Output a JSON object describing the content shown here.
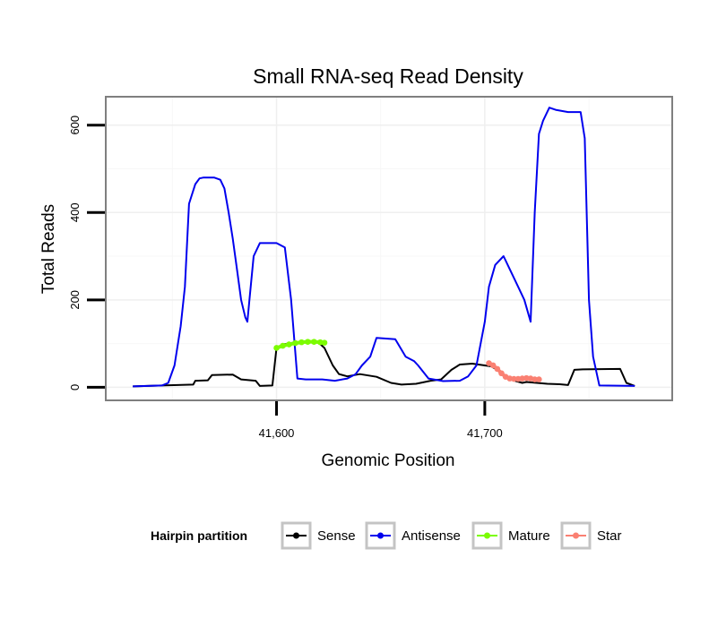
{
  "chart_data": {
    "type": "line",
    "title": "Small RNA-seq Read Density",
    "xlabel": "Genomic Position",
    "ylabel": "Total Reads",
    "xlim": [
      41518,
      41790
    ],
    "ylim": [
      -30,
      665
    ],
    "x_ticks": [
      41600,
      41700
    ],
    "x_tick_labels": [
      "41,600",
      "41,700"
    ],
    "y_ticks": [
      0,
      200,
      400,
      600
    ],
    "y_tick_labels": [
      "0",
      "200",
      "400",
      "600"
    ],
    "legend": {
      "title": "Hairpin partition",
      "position": "bottom",
      "entries": [
        "Sense",
        "Antisense",
        "Mature",
        "Star"
      ]
    },
    "series": [
      {
        "name": "Sense",
        "color": "#000000",
        "points": [
          [
            41531,
            2
          ],
          [
            41545,
            4
          ],
          [
            41560,
            6
          ],
          [
            41561,
            15
          ],
          [
            41567,
            16
          ],
          [
            41569,
            28
          ],
          [
            41579,
            29
          ],
          [
            41583,
            18
          ],
          [
            41590,
            15
          ],
          [
            41592,
            3
          ],
          [
            41598,
            4
          ],
          [
            41600,
            90
          ],
          [
            41603,
            98
          ],
          [
            41608,
            102
          ],
          [
            41615,
            104
          ],
          [
            41620,
            103
          ],
          [
            41623,
            90
          ],
          [
            41627,
            50
          ],
          [
            41630,
            30
          ],
          [
            41634,
            25
          ],
          [
            41640,
            30
          ],
          [
            41648,
            24
          ],
          [
            41655,
            10
          ],
          [
            41660,
            6
          ],
          [
            41667,
            8
          ],
          [
            41674,
            15
          ],
          [
            41679,
            18
          ],
          [
            41684,
            40
          ],
          [
            41688,
            52
          ],
          [
            41694,
            54
          ],
          [
            41700,
            50
          ],
          [
            41703,
            48
          ],
          [
            41706,
            40
          ],
          [
            41710,
            22
          ],
          [
            41715,
            14
          ],
          [
            41718,
            10
          ],
          [
            41720,
            12
          ],
          [
            41725,
            10
          ],
          [
            41730,
            8
          ],
          [
            41736,
            7
          ],
          [
            41740,
            5
          ],
          [
            41743,
            40
          ],
          [
            41747,
            41
          ],
          [
            41765,
            42
          ],
          [
            41768,
            10
          ],
          [
            41772,
            3
          ]
        ]
      },
      {
        "name": "Antisense",
        "color": "#0000ee",
        "points": [
          [
            41531,
            2
          ],
          [
            41545,
            4
          ],
          [
            41548,
            10
          ],
          [
            41551,
            50
          ],
          [
            41554,
            140
          ],
          [
            41556,
            230
          ],
          [
            41558,
            420
          ],
          [
            41561,
            465
          ],
          [
            41563,
            478
          ],
          [
            41565,
            480
          ],
          [
            41570,
            480
          ],
          [
            41573,
            475
          ],
          [
            41575,
            455
          ],
          [
            41577,
            400
          ],
          [
            41579,
            340
          ],
          [
            41581,
            270
          ],
          [
            41583,
            200
          ],
          [
            41585,
            160
          ],
          [
            41586,
            150
          ],
          [
            41587,
            200
          ],
          [
            41589,
            300
          ],
          [
            41592,
            330
          ],
          [
            41600,
            330
          ],
          [
            41604,
            320
          ],
          [
            41607,
            200
          ],
          [
            41610,
            20
          ],
          [
            41614,
            18
          ],
          [
            41622,
            18
          ],
          [
            41628,
            15
          ],
          [
            41634,
            20
          ],
          [
            41638,
            30
          ],
          [
            41641,
            50
          ],
          [
            41645,
            70
          ],
          [
            41648,
            113
          ],
          [
            41657,
            110
          ],
          [
            41662,
            70
          ],
          [
            41666,
            60
          ],
          [
            41668,
            50
          ],
          [
            41673,
            20
          ],
          [
            41680,
            14
          ],
          [
            41688,
            15
          ],
          [
            41692,
            25
          ],
          [
            41696,
            50
          ],
          [
            41700,
            150
          ],
          [
            41702,
            230
          ],
          [
            41705,
            280
          ],
          [
            41709,
            300
          ],
          [
            41712,
            270
          ],
          [
            41716,
            230
          ],
          [
            41719,
            200
          ],
          [
            41722,
            150
          ],
          [
            41724,
            400
          ],
          [
            41726,
            580
          ],
          [
            41728,
            610
          ],
          [
            41731,
            640
          ],
          [
            41734,
            635
          ],
          [
            41740,
            630
          ],
          [
            41746,
            630
          ],
          [
            41748,
            570
          ],
          [
            41750,
            200
          ],
          [
            41752,
            70
          ],
          [
            41755,
            4
          ],
          [
            41772,
            3
          ]
        ]
      },
      {
        "name": "Mature",
        "color": "#7cfc00",
        "points": [
          [
            41600,
            90
          ],
          [
            41603,
            95
          ],
          [
            41606,
            98
          ],
          [
            41609,
            101
          ],
          [
            41612,
            103
          ],
          [
            41615,
            104
          ],
          [
            41618,
            104
          ],
          [
            41621,
            103
          ],
          [
            41623,
            102
          ]
        ]
      },
      {
        "name": "Star",
        "color": "#fa8072",
        "points": [
          [
            41702,
            55
          ],
          [
            41704,
            50
          ],
          [
            41706,
            42
          ],
          [
            41708,
            32
          ],
          [
            41710,
            24
          ],
          [
            41712,
            20
          ],
          [
            41714,
            19
          ],
          [
            41716,
            19
          ],
          [
            41718,
            20
          ],
          [
            41720,
            21
          ],
          [
            41722,
            20
          ],
          [
            41724,
            18
          ],
          [
            41726,
            18
          ]
        ]
      }
    ]
  }
}
